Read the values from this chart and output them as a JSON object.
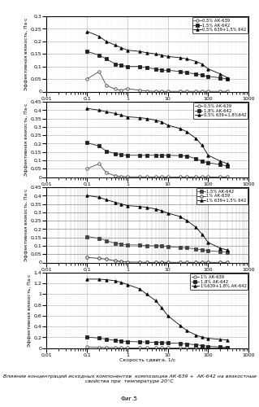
{
  "title_caption": "Влияние концентраций исходных компонентов  композиции АК-639 +  АК-642 на вязкостные\nсвойства при  температуре 20°С",
  "fig_label": "Фиг.5",
  "ylabel": "Эффективная вязкость, Па·с",
  "xlabel": "Скорость сдвига, 1/с",
  "panels": [
    {
      "ylim": [
        0,
        0.3
      ],
      "yticks": [
        0,
        0.05,
        0.1,
        0.15,
        0.2,
        0.25,
        0.3
      ],
      "yticklabels": [
        "0",
        "0,05",
        "0,1",
        "0,15",
        "0,2",
        "0,25",
        "0,3"
      ],
      "legend": [
        "0,5% АК-639",
        "1,5% АК-642",
        "0,5% 639+1,5% 642"
      ],
      "markers": [
        "o",
        "s",
        "^"
      ],
      "series": [
        {
          "x": [
            0.1,
            0.2,
            0.3,
            0.5,
            0.7,
            1.0,
            2.0,
            3.0,
            5.0,
            7.0,
            10,
            20,
            30,
            50,
            70,
            100,
            200,
            300
          ],
          "y": [
            0.05,
            0.08,
            0.025,
            0.01,
            0.005,
            0.012,
            0.005,
            0.002,
            0.001,
            0.001,
            0.001,
            0.001,
            0.001,
            0.001,
            0.001,
            0.001,
            0.001,
            0.001
          ]
        },
        {
          "x": [
            0.1,
            0.2,
            0.3,
            0.5,
            0.7,
            1.0,
            2.0,
            3.0,
            5.0,
            7.0,
            10,
            20,
            30,
            50,
            70,
            100,
            200,
            300
          ],
          "y": [
            0.16,
            0.145,
            0.13,
            0.11,
            0.105,
            0.1,
            0.1,
            0.095,
            0.09,
            0.085,
            0.085,
            0.08,
            0.075,
            0.07,
            0.065,
            0.06,
            0.055,
            0.05
          ]
        },
        {
          "x": [
            0.1,
            0.2,
            0.3,
            0.5,
            0.7,
            1.0,
            2.0,
            3.0,
            5.0,
            7.0,
            10,
            20,
            30,
            50,
            70,
            100,
            200,
            300
          ],
          "y": [
            0.24,
            0.22,
            0.2,
            0.185,
            0.175,
            0.165,
            0.16,
            0.155,
            0.15,
            0.145,
            0.14,
            0.135,
            0.13,
            0.12,
            0.11,
            0.09,
            0.07,
            0.055
          ]
        }
      ]
    },
    {
      "ylim": [
        0,
        0.45
      ],
      "yticks": [
        0,
        0.05,
        0.1,
        0.15,
        0.2,
        0.25,
        0.3,
        0.35,
        0.4,
        0.45
      ],
      "yticklabels": [
        "0",
        "0,05",
        "0,1",
        "0,15",
        "0,2",
        "0,25",
        "0,3",
        "0,35",
        "0,4",
        "0,45"
      ],
      "legend": [
        "0,5% АК-639",
        "1,8% АК-642",
        "0,5% 639+1,8%642"
      ],
      "markers": [
        "o",
        "s",
        "^"
      ],
      "series": [
        {
          "x": [
            0.1,
            0.2,
            0.3,
            0.5,
            0.7,
            1.0,
            2.0,
            3.0,
            5.0,
            7.0,
            10,
            20,
            30,
            50,
            70,
            100,
            200,
            300
          ],
          "y": [
            0.05,
            0.08,
            0.025,
            0.008,
            0.003,
            0.002,
            0.001,
            0.001,
            0.001,
            0.001,
            0.001,
            0.001,
            0.001,
            0.001,
            0.001,
            0.001,
            0.001,
            0.001
          ]
        },
        {
          "x": [
            0.1,
            0.2,
            0.3,
            0.5,
            0.7,
            1.0,
            2.0,
            3.0,
            5.0,
            7.0,
            10,
            20,
            30,
            50,
            70,
            100,
            200,
            300
          ],
          "y": [
            0.205,
            0.185,
            0.155,
            0.14,
            0.135,
            0.13,
            0.13,
            0.13,
            0.13,
            0.13,
            0.13,
            0.128,
            0.125,
            0.11,
            0.095,
            0.085,
            0.075,
            0.065
          ]
        },
        {
          "x": [
            0.1,
            0.2,
            0.3,
            0.5,
            0.7,
            1.0,
            2.0,
            3.0,
            5.0,
            7.0,
            10,
            20,
            30,
            50,
            70,
            100,
            200,
            300
          ],
          "y": [
            0.41,
            0.4,
            0.39,
            0.38,
            0.37,
            0.36,
            0.355,
            0.35,
            0.34,
            0.33,
            0.31,
            0.29,
            0.27,
            0.23,
            0.19,
            0.13,
            0.095,
            0.08
          ]
        }
      ]
    },
    {
      "ylim": [
        0,
        0.45
      ],
      "yticks": [
        0,
        0.05,
        0.1,
        0.15,
        0.2,
        0.25,
        0.3,
        0.35,
        0.4,
        0.45
      ],
      "yticklabels": [
        "0",
        "0,05",
        "0,1",
        "0,15",
        "0,2",
        "0,25",
        "0,3",
        "0,35",
        "0,4",
        "0,45"
      ],
      "legend": [
        "1,5% АК-642",
        "1% АК-639",
        "1% 639+1,5% 642"
      ],
      "markers": [
        "s",
        "o",
        "^"
      ],
      "series": [
        {
          "x": [
            0.1,
            0.2,
            0.3,
            0.5,
            0.7,
            1.0,
            2.0,
            3.0,
            5.0,
            7.0,
            10,
            20,
            30,
            50,
            70,
            100,
            200,
            300
          ],
          "y": [
            0.155,
            0.145,
            0.13,
            0.115,
            0.11,
            0.105,
            0.105,
            0.1,
            0.1,
            0.1,
            0.095,
            0.09,
            0.088,
            0.08,
            0.075,
            0.07,
            0.065,
            0.06
          ]
        },
        {
          "x": [
            0.1,
            0.2,
            0.3,
            0.5,
            0.7,
            1.0,
            2.0,
            3.0,
            5.0,
            7.0,
            10,
            20,
            30,
            50,
            70,
            100,
            200,
            300
          ],
          "y": [
            0.03,
            0.025,
            0.02,
            0.01,
            0.005,
            0.003,
            0.002,
            0.001,
            0.001,
            0.001,
            0.001,
            0.001,
            0.001,
            0.001,
            0.001,
            0.001,
            0.001,
            0.001
          ]
        },
        {
          "x": [
            0.1,
            0.2,
            0.3,
            0.5,
            0.7,
            1.0,
            2.0,
            3.0,
            5.0,
            7.0,
            10,
            20,
            30,
            50,
            70,
            100,
            200,
            300
          ],
          "y": [
            0.4,
            0.39,
            0.375,
            0.36,
            0.35,
            0.34,
            0.335,
            0.33,
            0.32,
            0.31,
            0.295,
            0.275,
            0.25,
            0.21,
            0.17,
            0.12,
            0.085,
            0.075
          ]
        }
      ]
    },
    {
      "ylim": [
        0,
        1.4
      ],
      "yticks": [
        0,
        0.2,
        0.4,
        0.6,
        0.8,
        1.0,
        1.2,
        1.4
      ],
      "yticklabels": [
        "0",
        "0,2",
        "0,4",
        "0,6",
        "0,8",
        "1",
        "1,2",
        "1,4"
      ],
      "legend": [
        "1% АК-639",
        "1,8% АК-642",
        "1%639+1,8% АК-642"
      ],
      "markers": [
        "o",
        "s",
        "^"
      ],
      "series": [
        {
          "x": [
            0.1,
            0.2,
            0.3,
            0.5,
            0.7,
            1.0,
            2.0,
            3.0,
            5.0,
            7.0,
            10,
            20,
            30,
            50,
            70,
            100,
            200,
            300
          ],
          "y": [
            0.02,
            0.015,
            0.01,
            0.005,
            0.003,
            0.002,
            0.001,
            0.001,
            0.001,
            0.001,
            0.001,
            0.001,
            0.001,
            0.001,
            0.001,
            0.001,
            0.001,
            0.001
          ]
        },
        {
          "x": [
            0.1,
            0.2,
            0.3,
            0.5,
            0.7,
            1.0,
            2.0,
            3.0,
            5.0,
            7.0,
            10,
            20,
            30,
            50,
            70,
            100,
            200,
            300
          ],
          "y": [
            0.2,
            0.185,
            0.165,
            0.14,
            0.13,
            0.12,
            0.115,
            0.11,
            0.105,
            0.1,
            0.095,
            0.085,
            0.075,
            0.06,
            0.045,
            0.03,
            0.02,
            0.015
          ]
        },
        {
          "x": [
            0.1,
            0.2,
            0.3,
            0.5,
            0.7,
            1.0,
            2.0,
            3.0,
            5.0,
            7.0,
            10,
            20,
            30,
            50,
            70,
            100,
            200,
            300
          ],
          "y": [
            1.28,
            1.28,
            1.27,
            1.25,
            1.22,
            1.18,
            1.1,
            1.0,
            0.88,
            0.75,
            0.6,
            0.42,
            0.32,
            0.24,
            0.2,
            0.18,
            0.16,
            0.15
          ]
        }
      ]
    }
  ]
}
